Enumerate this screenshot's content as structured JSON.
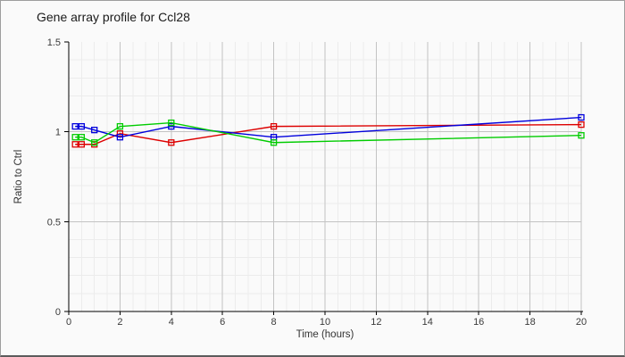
{
  "title": "Gene array profile for Ccl28",
  "chart_data": {
    "type": "line",
    "title": "Gene array profile for Ccl28",
    "xlabel": "Time (hours)",
    "ylabel": "Ratio to Ctrl",
    "x": [
      0.25,
      0.5,
      1,
      2,
      4,
      8,
      20
    ],
    "series": [
      {
        "name": "red",
        "color": "#dd0000",
        "values": [
          0.93,
          0.93,
          0.93,
          0.99,
          0.94,
          1.03,
          1.04
        ]
      },
      {
        "name": "blue",
        "color": "#0000dd",
        "values": [
          1.03,
          1.03,
          1.01,
          0.97,
          1.03,
          0.97,
          1.08
        ]
      },
      {
        "name": "green",
        "color": "#00cc00",
        "values": [
          0.97,
          0.97,
          0.94,
          1.03,
          1.05,
          0.94,
          0.98
        ]
      }
    ],
    "xlim": [
      0,
      20
    ],
    "ylim": [
      0,
      1.5
    ],
    "x_major_ticks": [
      0,
      2,
      4,
      6,
      8,
      10,
      12,
      14,
      16,
      18,
      20
    ],
    "y_major_ticks": [
      0,
      0.5,
      1,
      1.5
    ],
    "x_minor_step": 0.5,
    "y_minor_step": 0.1,
    "grid": true,
    "legend": "none",
    "marker": "open-square",
    "colors": {
      "minor_grid": "#ececec",
      "major_grid": "#c3c3c3",
      "axis": "#000000",
      "tick_label": "#3a3a3a"
    }
  }
}
